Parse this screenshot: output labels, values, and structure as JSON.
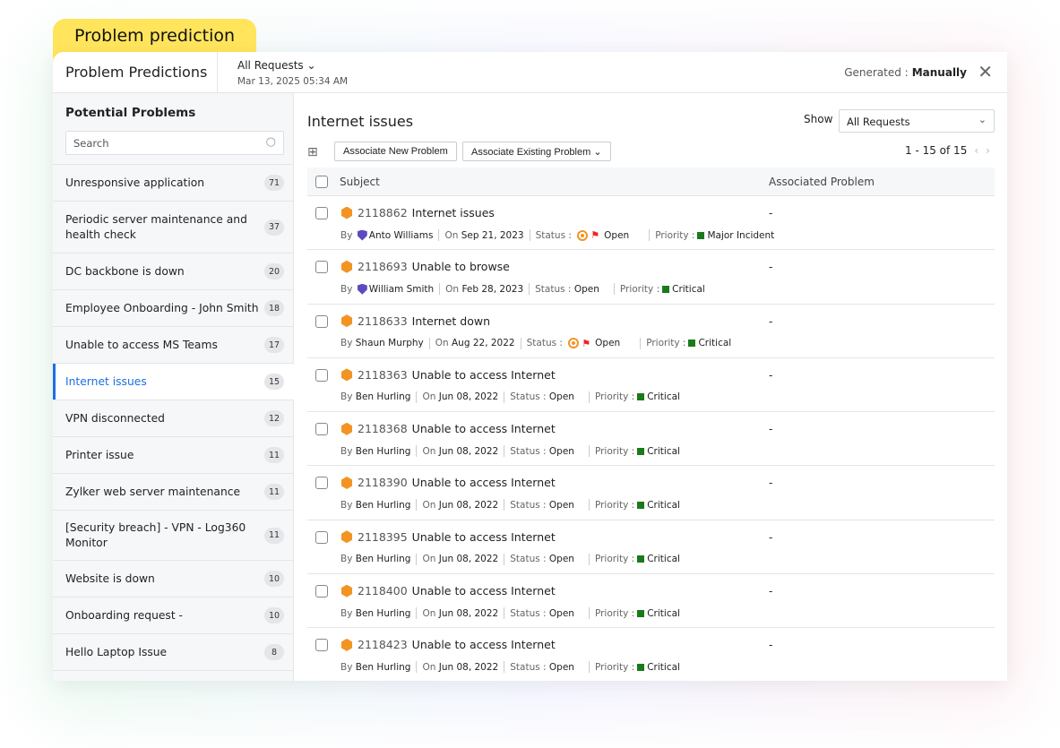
{
  "badge": "Problem prediction",
  "header": {
    "title": "Problem Predictions",
    "request_filter": "All Requests",
    "generated_at": "Mar 13, 2025 05:34 AM",
    "generated_label": "Generated :",
    "generated_value": "Manually",
    "close": "✕"
  },
  "sidebar": {
    "title": "Potential Problems",
    "search_placeholder": "Search",
    "items": [
      {
        "label": "Unresponsive application",
        "count": "71"
      },
      {
        "label": "Periodic server maintenance and health check",
        "count": "37"
      },
      {
        "label": "DC backbone is down",
        "count": "20"
      },
      {
        "label": "Employee Onboarding - John Smith",
        "count": "18"
      },
      {
        "label": "Unable to access MS Teams",
        "count": "17"
      },
      {
        "label": "Internet issues",
        "count": "15",
        "active": true
      },
      {
        "label": "VPN disconnected",
        "count": "12"
      },
      {
        "label": "Printer issue",
        "count": "11"
      },
      {
        "label": "Zylker web server maintenance",
        "count": "11"
      },
      {
        "label": "[Security breach] - VPN - Log360 Monitor",
        "count": "11"
      },
      {
        "label": "Website is down",
        "count": "10"
      },
      {
        "label": "Onboarding request -",
        "count": "10"
      },
      {
        "label": "Hello Laptop Issue",
        "count": "8"
      }
    ]
  },
  "main": {
    "title": "Internet issues",
    "show_label": "Show",
    "show_value": "All Requests",
    "associate_new": "Associate New Problem",
    "associate_existing": "Associate Existing Problem ⌄",
    "pagination": "1 - 15 of 15",
    "columns": {
      "subject": "Subject",
      "associated": "Associated Problem"
    },
    "labels": {
      "by": "By",
      "on": "On",
      "status": "Status :",
      "priority": "Priority :"
    },
    "rows": [
      {
        "id": "2118862",
        "subject": "Internet issues",
        "by": "Anto Williams",
        "tech": true,
        "on": "Sep 21, 2023",
        "status": "Open",
        "flagged": true,
        "priority": "Major Incident",
        "associated": "-"
      },
      {
        "id": "2118693",
        "subject": "Unable to browse",
        "by": "William Smith",
        "tech": true,
        "on": "Feb 28, 2023",
        "status": "Open",
        "flagged": false,
        "priority": "Critical",
        "associated": "-"
      },
      {
        "id": "2118633",
        "subject": "Internet down",
        "by": "Shaun Murphy",
        "tech": false,
        "on": "Aug 22, 2022",
        "status": "Open",
        "flagged": true,
        "priority": "Critical",
        "associated": "-"
      },
      {
        "id": "2118363",
        "subject": "Unable to access Internet",
        "by": "Ben Hurling",
        "tech": false,
        "on": "Jun 08, 2022",
        "status": "Open",
        "flagged": false,
        "priority": "Critical",
        "associated": "-"
      },
      {
        "id": "2118368",
        "subject": "Unable to access Internet",
        "by": "Ben Hurling",
        "tech": false,
        "on": "Jun 08, 2022",
        "status": "Open",
        "flagged": false,
        "priority": "Critical",
        "associated": "-"
      },
      {
        "id": "2118390",
        "subject": "Unable to access Internet",
        "by": "Ben Hurling",
        "tech": false,
        "on": "Jun 08, 2022",
        "status": "Open",
        "flagged": false,
        "priority": "Critical",
        "associated": "-"
      },
      {
        "id": "2118395",
        "subject": "Unable to access Internet",
        "by": "Ben Hurling",
        "tech": false,
        "on": "Jun 08, 2022",
        "status": "Open",
        "flagged": false,
        "priority": "Critical",
        "associated": "-"
      },
      {
        "id": "2118400",
        "subject": "Unable to access Internet",
        "by": "Ben Hurling",
        "tech": false,
        "on": "Jun 08, 2022",
        "status": "Open",
        "flagged": false,
        "priority": "Critical",
        "associated": "-"
      },
      {
        "id": "2118423",
        "subject": "Unable to access Internet",
        "by": "Ben Hurling",
        "tech": false,
        "on": "Jun 08, 2022",
        "status": "Open",
        "flagged": false,
        "priority": "Critical",
        "associated": "-"
      }
    ]
  },
  "colors": {
    "badge": "#ffe45c",
    "accent": "#1d6fe0",
    "request_icon": "#f29423",
    "priority": "#1a7a1a",
    "flag": "#e22222"
  }
}
